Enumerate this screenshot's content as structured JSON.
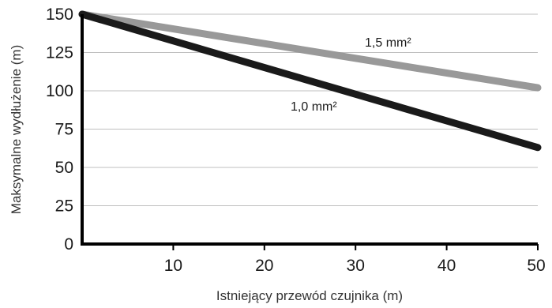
{
  "chart_data": {
    "type": "line",
    "title": "",
    "xlabel": "Istniejący przewód czujnika (m)",
    "ylabel": "Maksymalne wydłużenie (m)",
    "xlim": [
      0,
      50
    ],
    "ylim": [
      0,
      150
    ],
    "x_ticks": [
      "10",
      "20",
      "30",
      "40",
      "50"
    ],
    "y_ticks": [
      "0",
      "25",
      "50",
      "75",
      "100",
      "125",
      "150"
    ],
    "grid": "horizontal",
    "series": [
      {
        "name": "1,5 mm²",
        "color": "#999999",
        "x": [
          0,
          50
        ],
        "y": [
          150,
          102
        ]
      },
      {
        "name": "1,0 mm²",
        "color": "#1a1a1a",
        "x": [
          0,
          50
        ],
        "y": [
          150,
          63
        ]
      }
    ]
  }
}
